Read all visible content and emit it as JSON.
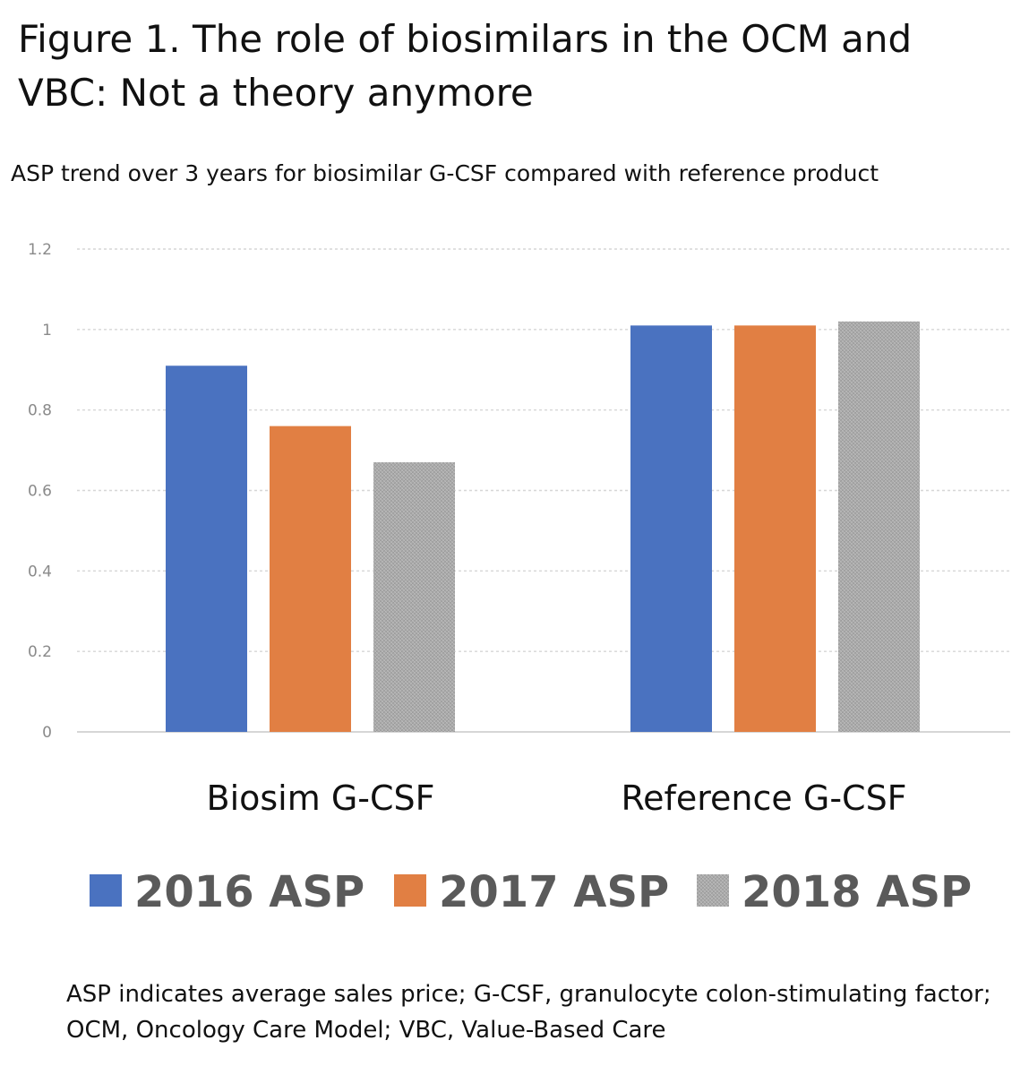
{
  "figure": {
    "title": "Figure 1. The role of biosimilars in the OCM and VBC: Not a theory anymore",
    "subtitle": "ASP trend over 3 years for biosimilar G-CSF compared with reference product",
    "footnote": "ASP indicates average sales price; G-CSF, granulocyte colon-stimulating factor; OCM, Oncology Care Model; VBC, Value-Based Care"
  },
  "chart_data": {
    "type": "bar",
    "title": "ASP trend over 3 years for biosimilar G-CSF compared with reference product",
    "xlabel": "",
    "ylabel": "",
    "categories": [
      "Biosim G-CSF",
      "Reference G-CSF"
    ],
    "series": [
      {
        "name": "2016 ASP",
        "values": [
          0.91,
          1.01
        ],
        "color": "#4a72c0"
      },
      {
        "name": "2017 ASP",
        "values": [
          0.76,
          1.01
        ],
        "color": "#e17f43"
      },
      {
        "name": "2018 ASP",
        "values": [
          0.67,
          1.02
        ],
        "color": "#a8a8a8"
      }
    ],
    "ylim": [
      0,
      1.2
    ],
    "yticks": [
      "0",
      "0.2",
      "0.4",
      "0.6",
      "0.8",
      "1",
      "1.2"
    ],
    "grid": true,
    "legend": "bottom"
  }
}
